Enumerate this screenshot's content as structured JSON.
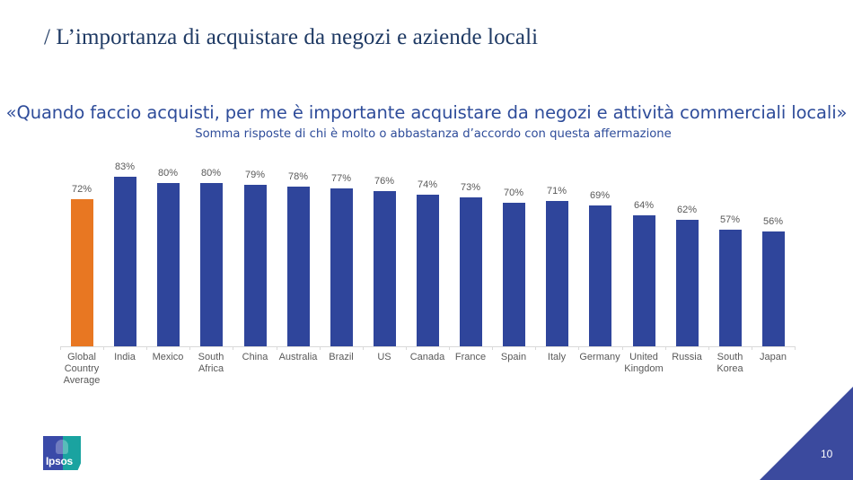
{
  "slide": {
    "title": "/ L’importanza di acquistare da negozi e aziende locali",
    "page_number": "10",
    "logo_text": "Ipsos"
  },
  "chart_data": {
    "type": "bar",
    "title": "«Quando faccio acquisti, per me è importante acquistare da negozi e attività commerciali locali»",
    "subtitle": "Somma risposte di chi è molto o abbastanza d’accordo con questa affermazione",
    "xlabel": "",
    "ylabel": "",
    "ylim": [
      0,
      100
    ],
    "grid": false,
    "legend": null,
    "categories": [
      "Global Country Average",
      "India",
      "Mexico",
      "South Africa",
      "China",
      "Australia",
      "Brazil",
      "US",
      "Canada",
      "France",
      "Spain",
      "Italy",
      "Germany",
      "United Kingdom",
      "Russia",
      "South Korea",
      "Japan"
    ],
    "values": [
      72,
      83,
      80,
      80,
      79,
      78,
      77,
      76,
      74,
      73,
      70,
      71,
      69,
      64,
      62,
      57,
      56
    ],
    "value_labels": [
      "72%",
      "83%",
      "80%",
      "80%",
      "79%",
      "78%",
      "77%",
      "76%",
      "74%",
      "73%",
      "70%",
      "71%",
      "69%",
      "64%",
      "62%",
      "57%",
      "56%"
    ],
    "colors": {
      "highlight": "#e87722",
      "default": "#2f459b"
    },
    "highlight_index": 0
  },
  "bars": [
    {
      "label": "Global\nCountry\nAverage",
      "value": 72,
      "value_label": "72%"
    },
    {
      "label": "India",
      "value": 83,
      "value_label": "83%"
    },
    {
      "label": "Mexico",
      "value": 80,
      "value_label": "80%"
    },
    {
      "label": "South\nAfrica",
      "value": 80,
      "value_label": "80%"
    },
    {
      "label": "China",
      "value": 79,
      "value_label": "79%"
    },
    {
      "label": "Australia",
      "value": 78,
      "value_label": "78%"
    },
    {
      "label": "Brazil",
      "value": 77,
      "value_label": "77%"
    },
    {
      "label": "US",
      "value": 76,
      "value_label": "76%"
    },
    {
      "label": "Canada",
      "value": 74,
      "value_label": "74%"
    },
    {
      "label": "France",
      "value": 73,
      "value_label": "73%"
    },
    {
      "label": "Spain",
      "value": 70,
      "value_label": "70%"
    },
    {
      "label": "Italy",
      "value": 71,
      "value_label": "71%"
    },
    {
      "label": "Germany",
      "value": 69,
      "value_label": "69%"
    },
    {
      "label": "United\nKingdom",
      "value": 64,
      "value_label": "64%"
    },
    {
      "label": "Russia",
      "value": 62,
      "value_label": "62%"
    },
    {
      "label": "South\nKorea",
      "value": 57,
      "value_label": "57%"
    },
    {
      "label": "Japan",
      "value": 56,
      "value_label": "56%"
    }
  ]
}
